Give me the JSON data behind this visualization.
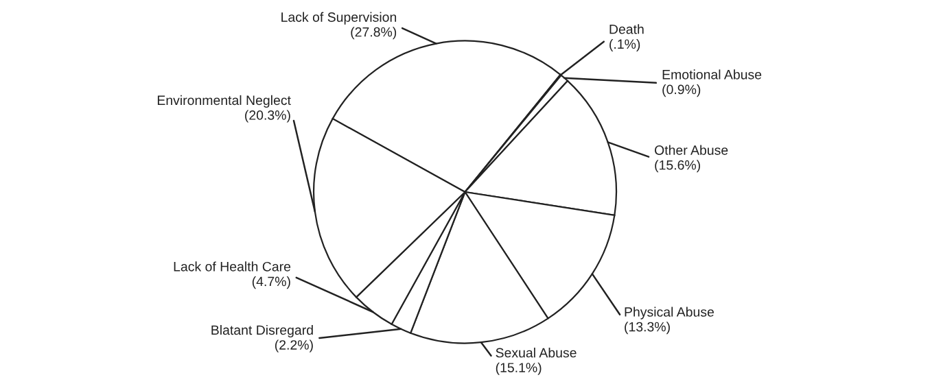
{
  "chart_data": {
    "type": "pie",
    "categories": [
      "Lack of Supervision",
      "Death",
      "Emotional Abuse",
      "Other Abuse",
      "Physical Abuse",
      "Sexual Abuse",
      "Blatant Disregard",
      "Lack of Health Care",
      "Environmental Neglect"
    ],
    "values": [
      27.8,
      0.1,
      0.9,
      15.6,
      13.3,
      15.1,
      2.2,
      4.7,
      20.3
    ],
    "value_labels": [
      "(27.8%)",
      "(.1%)",
      "(0.9%)",
      "(15.6%)",
      "(13.3%)",
      "(15.1%)",
      "(2.2%)",
      "(4.7%)",
      "(20.3%)"
    ],
    "colors": [
      "#ffffff",
      "#ffffff",
      "#ffffff",
      "#ffffff",
      "#ffffff",
      "#ffffff",
      "#ffffff",
      "#ffffff",
      "#ffffff"
    ]
  }
}
